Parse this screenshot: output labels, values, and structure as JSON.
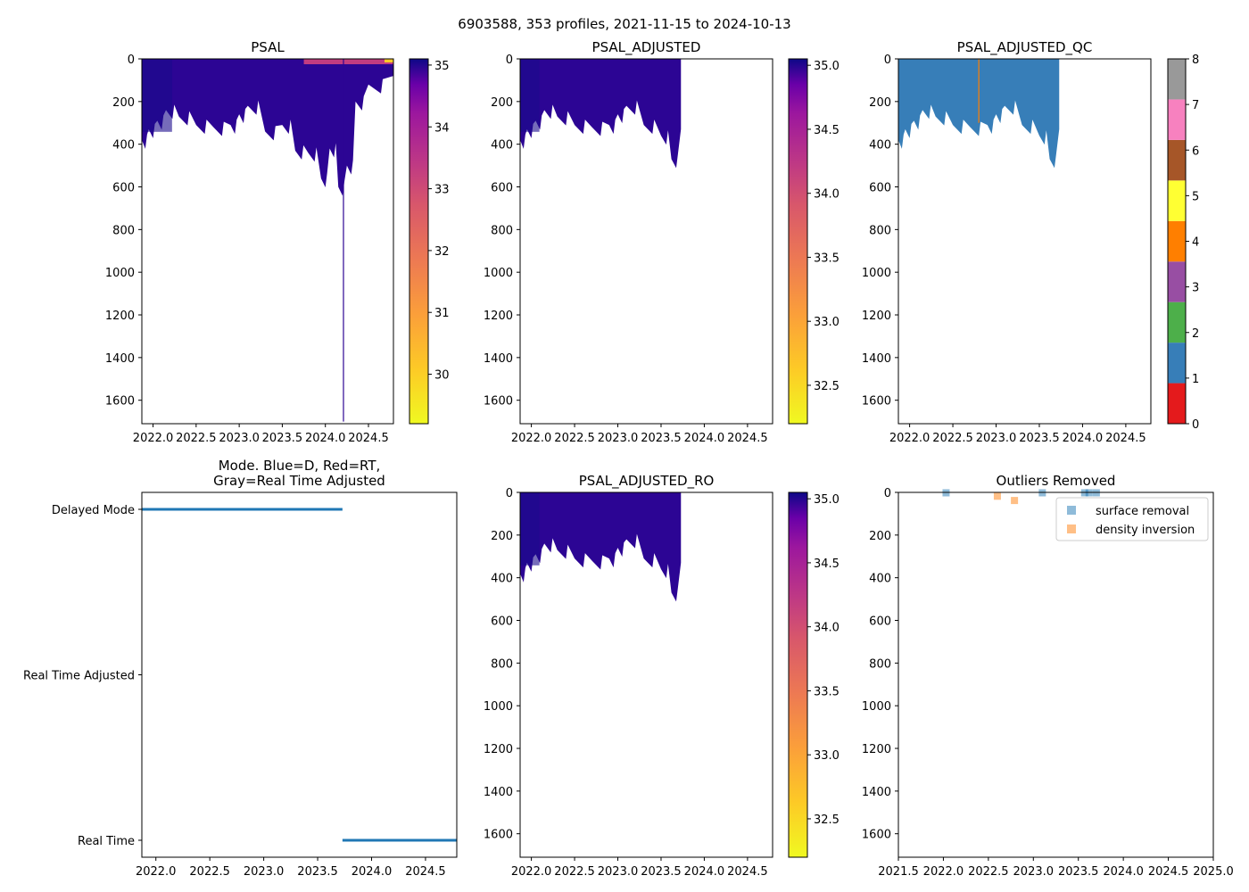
{
  "suptitle": "6903588, 353 profiles, 2021-11-15 to 2024-10-13",
  "chart_data": [
    {
      "id": "psal",
      "type": "heatmap",
      "title": "PSAL",
      "xlabel": "",
      "ylabel": "",
      "x_ticks": [
        "2022.0",
        "2022.5",
        "2023.0",
        "2023.5",
        "2024.0",
        "2024.5"
      ],
      "y_ticks": [
        "0",
        "200",
        "400",
        "600",
        "800",
        "1000",
        "1200",
        "1400",
        "1600"
      ],
      "xlim": [
        2021.87,
        2024.79
      ],
      "ylim": [
        1710,
        0
      ],
      "colormap": "plasma_r",
      "colorbar": {
        "range": [
          29.2,
          35.1
        ],
        "ticks": [
          "30",
          "31",
          "32",
          "33",
          "34",
          "35"
        ]
      },
      "profile_depth_envelope": [
        {
          "x": 2021.87,
          "depth": 380
        },
        {
          "x": 2021.95,
          "depth": 330
        },
        {
          "x": 2022.05,
          "depth": 290
        },
        {
          "x": 2022.15,
          "depth": 240
        },
        {
          "x": 2022.3,
          "depth": 270
        },
        {
          "x": 2022.5,
          "depth": 310
        },
        {
          "x": 2022.7,
          "depth": 320
        },
        {
          "x": 2022.9,
          "depth": 310
        },
        {
          "x": 2023.0,
          "depth": 260
        },
        {
          "x": 2023.1,
          "depth": 220
        },
        {
          "x": 2023.3,
          "depth": 340
        },
        {
          "x": 2023.5,
          "depth": 310
        },
        {
          "x": 2023.65,
          "depth": 430
        },
        {
          "x": 2023.8,
          "depth": 440
        },
        {
          "x": 2023.95,
          "depth": 560
        },
        {
          "x": 2024.05,
          "depth": 420
        },
        {
          "x": 2024.15,
          "depth": 600
        },
        {
          "x": 2024.25,
          "depth": 500
        },
        {
          "x": 2024.35,
          "depth": 200
        },
        {
          "x": 2024.5,
          "depth": 120
        },
        {
          "x": 2024.79,
          "depth": 80
        }
      ],
      "deep_profile_x": 2024.21,
      "deep_profile_depth": 1700
    },
    {
      "id": "psal_adjusted",
      "type": "heatmap",
      "title": "PSAL_ADJUSTED",
      "xlabel": "",
      "ylabel": "",
      "x_ticks": [
        "2022.0",
        "2022.5",
        "2023.0",
        "2023.5",
        "2024.0",
        "2024.5"
      ],
      "y_ticks": [
        "0",
        "200",
        "400",
        "600",
        "800",
        "1000",
        "1200",
        "1400",
        "1600"
      ],
      "xlim": [
        2021.87,
        2024.79
      ],
      "ylim": [
        1710,
        0
      ],
      "colormap": "plasma_r",
      "colorbar": {
        "range": [
          32.2,
          35.05
        ],
        "ticks": [
          "32.5",
          "33.0",
          "33.5",
          "34.0",
          "34.5",
          "35.0"
        ]
      },
      "data_end_x": 2023.73,
      "profile_depth_envelope": [
        {
          "x": 2021.87,
          "depth": 380
        },
        {
          "x": 2021.95,
          "depth": 330
        },
        {
          "x": 2022.05,
          "depth": 290
        },
        {
          "x": 2022.15,
          "depth": 240
        },
        {
          "x": 2022.3,
          "depth": 270
        },
        {
          "x": 2022.5,
          "depth": 310
        },
        {
          "x": 2022.7,
          "depth": 320
        },
        {
          "x": 2022.9,
          "depth": 310
        },
        {
          "x": 2023.0,
          "depth": 260
        },
        {
          "x": 2023.1,
          "depth": 220
        },
        {
          "x": 2023.3,
          "depth": 310
        },
        {
          "x": 2023.5,
          "depth": 360
        },
        {
          "x": 2023.62,
          "depth": 470
        },
        {
          "x": 2023.73,
          "depth": 330
        }
      ]
    },
    {
      "id": "psal_adjusted_qc",
      "type": "heatmap",
      "title": "PSAL_ADJUSTED_QC",
      "xlabel": "",
      "ylabel": "",
      "x_ticks": [
        "2022.0",
        "2022.5",
        "2023.0",
        "2023.5",
        "2024.0",
        "2024.5"
      ],
      "y_ticks": [
        "0",
        "200",
        "400",
        "600",
        "800",
        "1000",
        "1200",
        "1400",
        "1600"
      ],
      "xlim": [
        2021.87,
        2024.79
      ],
      "ylim": [
        1710,
        0
      ],
      "colorbar": {
        "range": [
          0,
          8
        ],
        "ticks": [
          "0",
          "1",
          "2",
          "3",
          "4",
          "5",
          "6",
          "7",
          "8"
        ],
        "colors": [
          "#e41a1c",
          "#377eb8",
          "#4daf4a",
          "#984ea3",
          "#ff7f00",
          "#ffff33",
          "#a65628",
          "#f781bf",
          "#999999"
        ]
      },
      "dominant_flag": 1,
      "flag4_profile_x": 2022.8,
      "data_end_x": 2023.73
    },
    {
      "id": "mode",
      "type": "line",
      "title": "Mode. Blue=D, Red=RT,\nGray=Real Time Adjusted",
      "xlabel": "",
      "ylabel": "",
      "x_ticks": [
        "2022.0",
        "2022.5",
        "2023.0",
        "2023.5",
        "2024.0",
        "2024.5"
      ],
      "categories": [
        "Delayed Mode",
        "Real Time Adjusted",
        "Real Time"
      ],
      "xlim": [
        2021.87,
        2024.79
      ],
      "series": [
        {
          "color": "#1f77b4",
          "points": [
            {
              "x": 2021.87,
              "mode": "Delayed Mode"
            },
            {
              "x": 2023.73,
              "mode": "Delayed Mode"
            }
          ]
        },
        {
          "color": "#1f77b4",
          "points": [
            {
              "x": 2023.73,
              "mode": "Real Time"
            },
            {
              "x": 2024.79,
              "mode": "Real Time"
            }
          ]
        }
      ]
    },
    {
      "id": "psal_adjusted_ro",
      "type": "heatmap",
      "title": "PSAL_ADJUSTED_RO",
      "xlabel": "",
      "ylabel": "",
      "x_ticks": [
        "2022.0",
        "2022.5",
        "2023.0",
        "2023.5",
        "2024.0",
        "2024.5"
      ],
      "y_ticks": [
        "0",
        "200",
        "400",
        "600",
        "800",
        "1000",
        "1200",
        "1400",
        "1600"
      ],
      "xlim": [
        2021.87,
        2024.79
      ],
      "ylim": [
        1710,
        0
      ],
      "colormap": "plasma_r",
      "colorbar": {
        "range": [
          32.2,
          35.05
        ],
        "ticks": [
          "32.5",
          "33.0",
          "33.5",
          "34.0",
          "34.5",
          "35.0"
        ]
      },
      "data_end_x": 2023.73
    },
    {
      "id": "outliers",
      "type": "scatter",
      "title": "Outliers Removed",
      "xlabel": "",
      "ylabel": "",
      "x_ticks": [
        "2021.5",
        "2022.0",
        "2022.5",
        "2023.0",
        "2023.5",
        "2024.0",
        "2024.5",
        "2025.0"
      ],
      "y_ticks": [
        "0",
        "200",
        "400",
        "600",
        "800",
        "1000",
        "1200",
        "1400",
        "1600"
      ],
      "xlim": [
        2021.5,
        2025.0
      ],
      "ylim": [
        1710,
        0
      ],
      "legend": "top-right",
      "series": [
        {
          "name": "surface removal",
          "color": "#1f77b4",
          "points": [
            {
              "x": 2022.03,
              "y": 2
            },
            {
              "x": 2023.1,
              "y": 2
            },
            {
              "x": 2023.57,
              "y": 2
            },
            {
              "x": 2023.62,
              "y": 2
            },
            {
              "x": 2023.7,
              "y": 2
            }
          ]
        },
        {
          "name": "density inversion",
          "color": "#ff7f0e",
          "points": [
            {
              "x": 2022.6,
              "y": 18
            },
            {
              "x": 2022.79,
              "y": 38
            }
          ]
        }
      ]
    }
  ]
}
